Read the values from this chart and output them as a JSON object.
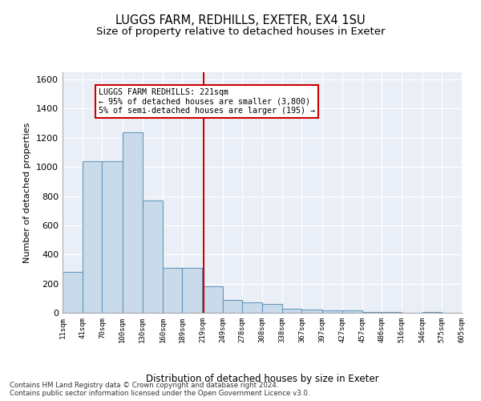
{
  "title": "LUGGS FARM, REDHILLS, EXETER, EX4 1SU",
  "subtitle": "Size of property relative to detached houses in Exeter",
  "xlabel": "Distribution of detached houses by size in Exeter",
  "ylabel": "Number of detached properties",
  "bar_color": "#c9daea",
  "bar_edge_color": "#6699bb",
  "vline_color": "#cc0000",
  "vline_x": 221,
  "annotation_text": "LUGGS FARM REDHILLS: 221sqm\n← 95% of detached houses are smaller (3,800)\n5% of semi-detached houses are larger (195) →",
  "footnote": "Contains HM Land Registry data © Crown copyright and database right 2024.\nContains public sector information licensed under the Open Government Licence v3.0.",
  "bin_edges": [
    11,
    41,
    70,
    100,
    130,
    160,
    189,
    219,
    249,
    278,
    308,
    338,
    367,
    397,
    427,
    457,
    486,
    516,
    546,
    575,
    605
  ],
  "bin_counts": [
    280,
    1040,
    1040,
    1240,
    770,
    310,
    310,
    180,
    90,
    70,
    60,
    28,
    20,
    18,
    18,
    5,
    5,
    0,
    5,
    0
  ],
  "ylim": [
    0,
    1650
  ],
  "yticks": [
    0,
    200,
    400,
    600,
    800,
    1000,
    1200,
    1400,
    1600
  ],
  "background_color": "#eaeff7",
  "title_fontsize": 10.5,
  "subtitle_fontsize": 9.5,
  "figsize": [
    6.0,
    5.0
  ],
  "dpi": 100
}
